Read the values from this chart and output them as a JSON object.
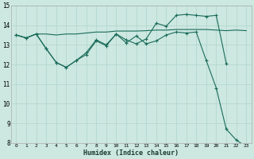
{
  "xlabel": "Humidex (Indice chaleur)",
  "x_values": [
    0,
    1,
    2,
    3,
    4,
    5,
    6,
    7,
    8,
    9,
    10,
    11,
    12,
    13,
    14,
    15,
    16,
    17,
    18,
    19,
    20,
    21,
    22,
    23
  ],
  "line1_y": [
    13.5,
    13.35,
    13.55,
    13.55,
    13.5,
    13.55,
    13.55,
    13.6,
    13.65,
    13.65,
    13.7,
    13.7,
    13.7,
    13.72,
    13.75,
    13.75,
    13.78,
    13.78,
    13.78,
    13.78,
    13.75,
    13.72,
    13.75,
    13.72
  ],
  "line2_x": [
    0,
    1,
    2,
    3,
    4,
    5,
    6,
    7,
    8,
    9,
    10,
    11,
    12,
    13,
    14,
    15,
    16,
    17,
    18,
    19,
    20,
    21
  ],
  "line2_y": [
    13.5,
    13.35,
    13.55,
    12.8,
    12.1,
    11.85,
    12.2,
    12.5,
    13.2,
    12.95,
    13.55,
    13.25,
    13.05,
    13.3,
    14.1,
    13.95,
    14.5,
    14.55,
    14.5,
    14.45,
    14.5,
    12.05
  ],
  "line3_x": [
    0,
    1,
    2,
    3,
    4,
    5,
    6,
    7,
    8,
    9,
    10,
    11,
    12,
    13,
    14,
    15,
    16,
    17,
    18,
    19,
    20,
    21,
    22,
    23
  ],
  "line3_y": [
    13.5,
    13.35,
    13.55,
    12.8,
    12.1,
    11.85,
    12.2,
    12.6,
    13.25,
    13.0,
    13.55,
    13.1,
    13.45,
    13.05,
    13.2,
    13.5,
    13.65,
    13.6,
    13.65,
    12.2,
    10.8,
    8.7,
    8.15,
    7.8
  ],
  "bg_color": "#cce8e0",
  "grid_color": "#b0d4cc",
  "line_color": "#1a6b5a",
  "ylim": [
    8,
    15
  ],
  "yticks": [
    8,
    9,
    10,
    11,
    12,
    13,
    14,
    15
  ],
  "marker": "+",
  "marker_size": 3.5
}
